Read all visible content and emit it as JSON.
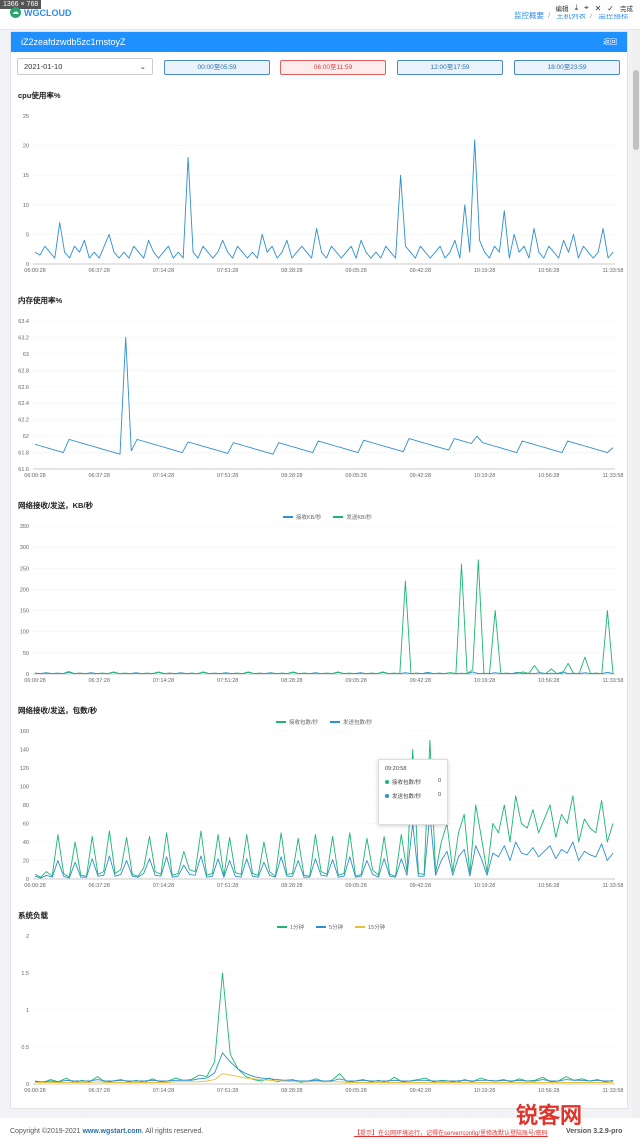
{
  "screen": {
    "size_tag": "1366 × 768"
  },
  "topbar": {
    "logo": "WGCLOUD",
    "breadcrumb": [
      "监控概要",
      "主机列表",
      "监控指标"
    ],
    "edit_tools": [
      "编辑",
      "完成"
    ]
  },
  "panel": {
    "title": "iZ2zeafdzwdb5zc1rnstoyZ",
    "back_label": "返回",
    "date_value": "2021-01-10",
    "time_ranges": [
      "00:00至05:59",
      "06:00至11:59",
      "12:00至17:59",
      "18:00至23:59"
    ],
    "active_range_index": 1
  },
  "colors": {
    "blue": "#2f8fd1",
    "green": "#1bb76e",
    "dark_green": "#1a9e6a",
    "yellow": "#e6c23a",
    "header": "#1e90ff"
  },
  "x_ticks": [
    "06:00:28",
    "06:37:28",
    "07:14:28",
    "07:51:28",
    "08:28:28",
    "09:05:28",
    "09:42:28",
    "10:19:28",
    "10:56:28",
    "11:33:58"
  ],
  "chart_data": [
    {
      "type": "line",
      "title": "cpu使用率%",
      "ylim": [
        0,
        25
      ],
      "yticks": [
        "0",
        "5",
        "10",
        "15",
        "20",
        "25"
      ],
      "series": [
        {
          "values": [
            2,
            1.5,
            3,
            2,
            1,
            7,
            2,
            1,
            3,
            2,
            4,
            1,
            2,
            1,
            3,
            5,
            2,
            1,
            2,
            1,
            3,
            2,
            1,
            4,
            2,
            1,
            2,
            3,
            1,
            2,
            1,
            18,
            2,
            1,
            3,
            2,
            1,
            2,
            4,
            2,
            1,
            3,
            2,
            1,
            2,
            1,
            5,
            2,
            3,
            1,
            2,
            4,
            1,
            2,
            3,
            2,
            1,
            6,
            2,
            1,
            3,
            2,
            1,
            2,
            3,
            1,
            4,
            2,
            1,
            2,
            1,
            3,
            2,
            1,
            15,
            3,
            2,
            1,
            3,
            2,
            1,
            2,
            3,
            1,
            2,
            4,
            1,
            10,
            2,
            21,
            4,
            2,
            1,
            3,
            2,
            9,
            1,
            5,
            2,
            3,
            1,
            6,
            2,
            1,
            3,
            2,
            1,
            4,
            2,
            5,
            1,
            3,
            2,
            1,
            2,
            6,
            1,
            2
          ]
        }
      ]
    },
    {
      "type": "line",
      "title": "内存使用率%",
      "ylim": [
        61.6,
        63.4
      ],
      "yticks": [
        "61.6",
        "61.8",
        "62",
        "62.2",
        "62.4",
        "62.6",
        "62.8",
        "63",
        "63.2",
        "63.4"
      ],
      "series": [
        {
          "values": [
            61.9,
            61.88,
            61.86,
            61.84,
            61.82,
            61.8,
            61.96,
            61.94,
            61.92,
            61.9,
            61.88,
            61.86,
            61.84,
            61.82,
            61.8,
            61.78,
            63.2,
            61.82,
            61.96,
            61.94,
            61.92,
            61.9,
            61.88,
            61.86,
            61.84,
            61.82,
            61.8,
            61.93,
            61.91,
            61.89,
            61.87,
            61.85,
            61.83,
            61.81,
            61.79,
            61.92,
            61.9,
            61.88,
            61.86,
            61.84,
            61.82,
            61.8,
            61.78,
            61.92,
            61.9,
            61.88,
            61.86,
            61.84,
            61.82,
            61.8,
            61.94,
            61.92,
            61.9,
            61.88,
            61.86,
            61.84,
            61.82,
            61.8,
            61.95,
            61.93,
            61.91,
            61.89,
            61.87,
            61.85,
            61.83,
            61.81,
            61.97,
            61.95,
            61.93,
            61.91,
            61.89,
            61.87,
            61.85,
            61.83,
            61.97,
            61.95,
            61.93,
            61.91,
            62,
            61.92,
            61.9,
            61.88,
            61.86,
            61.84,
            61.82,
            61.8,
            61.94,
            61.92,
            61.9,
            61.88,
            61.86,
            61.84,
            61.82,
            61.8,
            61.94,
            61.92,
            61.9,
            61.88,
            61.86,
            61.84,
            61.82,
            61.8,
            61.86
          ]
        }
      ]
    },
    {
      "type": "line",
      "title": "网络接收/发送，KB/秒",
      "ylim": [
        0,
        350
      ],
      "yticks": [
        "0",
        "50",
        "100",
        "150",
        "200",
        "250",
        "300",
        "350"
      ],
      "series": [
        {
          "name": "接收KB/秒",
          "values": [
            2,
            1,
            3,
            1,
            2,
            1,
            4,
            1,
            2,
            1,
            3,
            1,
            2,
            1,
            5,
            1,
            2,
            1,
            3,
            1,
            2,
            1,
            4,
            1,
            2,
            1,
            3,
            1,
            2,
            1,
            5,
            1,
            2,
            1,
            3,
            1,
            2,
            1,
            4,
            1,
            2,
            1,
            3,
            1,
            2,
            1,
            5,
            1,
            2,
            1,
            3,
            1,
            2,
            1,
            4,
            1,
            2,
            1,
            3,
            1,
            2,
            1,
            5,
            1,
            2,
            1,
            3,
            1,
            2,
            1,
            4,
            1,
            2,
            1,
            3,
            1,
            2,
            1,
            5,
            1,
            2,
            1,
            3,
            1,
            2,
            1,
            4,
            1,
            2,
            1,
            3,
            1,
            2,
            1,
            5,
            1,
            2,
            1,
            3,
            1,
            2,
            1,
            4,
            1
          ]
        },
        {
          "name": "发送KB/秒",
          "values": [
            2,
            1,
            2,
            1,
            2,
            1,
            6,
            1,
            2,
            1,
            2,
            1,
            2,
            1,
            4,
            1,
            2,
            1,
            2,
            1,
            2,
            1,
            5,
            1,
            2,
            1,
            2,
            1,
            2,
            1,
            4,
            1,
            2,
            1,
            2,
            1,
            2,
            1,
            5,
            1,
            2,
            1,
            2,
            1,
            2,
            1,
            4,
            1,
            2,
            1,
            2,
            1,
            2,
            1,
            5,
            1,
            2,
            1,
            2,
            1,
            2,
            1,
            4,
            1,
            2,
            1,
            220,
            1,
            2,
            1,
            2,
            1,
            2,
            1,
            3,
            1,
            260,
            1,
            10,
            270,
            1,
            2,
            150,
            1,
            2,
            1,
            2,
            5,
            1,
            20,
            2,
            1,
            12,
            1,
            2,
            25,
            1,
            2,
            40,
            1,
            2,
            1,
            150,
            1
          ]
        }
      ]
    },
    {
      "type": "line",
      "title": "网络接收/发送，包数/秒",
      "ylim": [
        0,
        160
      ],
      "yticks": [
        "0",
        "20",
        "40",
        "60",
        "80",
        "100",
        "120",
        "140",
        "160"
      ],
      "series": [
        {
          "name": "接收包数/秒",
          "values": [
            5,
            2,
            8,
            3,
            48,
            6,
            2,
            40,
            4,
            3,
            46,
            5,
            8,
            52,
            6,
            10,
            45,
            5,
            3,
            12,
            46,
            8,
            5,
            50,
            4,
            6,
            30,
            10,
            8,
            52,
            4,
            6,
            48,
            3,
            45,
            7,
            5,
            48,
            6,
            4,
            40,
            8,
            3,
            50,
            5,
            6,
            44,
            4,
            3,
            48,
            8,
            5,
            46,
            4,
            6,
            50,
            3,
            5,
            44,
            10,
            4,
            46,
            5,
            3,
            48,
            8,
            140,
            6,
            5,
            150,
            7,
            40,
            60,
            8,
            50,
            70,
            6,
            80,
            45,
            7,
            60,
            50,
            80,
            40,
            90,
            60,
            55,
            75,
            50,
            65,
            80,
            45,
            70,
            60,
            90,
            40,
            65,
            55,
            50,
            85,
            40,
            60
          ]
        },
        {
          "name": "发送包数/秒",
          "values": [
            3,
            1,
            4,
            2,
            20,
            3,
            1,
            18,
            2,
            2,
            22,
            3,
            4,
            25,
            3,
            5,
            20,
            3,
            2,
            6,
            22,
            4,
            3,
            24,
            2,
            3,
            15,
            5,
            4,
            25,
            2,
            3,
            22,
            2,
            20,
            3,
            2,
            22,
            3,
            2,
            18,
            4,
            2,
            24,
            3,
            3,
            20,
            2,
            2,
            22,
            4,
            3,
            21,
            2,
            3,
            24,
            2,
            3,
            20,
            5,
            2,
            22,
            3,
            2,
            22,
            4,
            60,
            3,
            3,
            70,
            4,
            20,
            30,
            4,
            24,
            32,
            3,
            36,
            22,
            4,
            28,
            24,
            36,
            20,
            40,
            28,
            26,
            34,
            24,
            30,
            36,
            22,
            32,
            28,
            40,
            20,
            30,
            26,
            24,
            38,
            20,
            28
          ]
        }
      ]
    },
    {
      "type": "line",
      "title": "系统负载",
      "ylim": [
        0,
        2
      ],
      "yticks": [
        "0",
        "0.5",
        "1",
        "1.5",
        "2"
      ],
      "series": [
        {
          "name": "1分钟",
          "values": [
            0.04,
            0.02,
            0.06,
            0.03,
            0.08,
            0.02,
            0.05,
            0.03,
            0.1,
            0.02,
            0.04,
            0.06,
            0.03,
            0.05,
            0.02,
            0.07,
            0.03,
            0.04,
            0.08,
            0.05,
            0.06,
            0.12,
            0.1,
            0.3,
            1.5,
            0.4,
            0.2,
            0.1,
            0.06,
            0.04,
            0.08,
            0.03,
            0.05,
            0.06,
            0.02,
            0.04,
            0.07,
            0.03,
            0.05,
            0.14,
            0.02,
            0.04,
            0.06,
            0.03,
            0.05,
            0.02,
            0.09,
            0.03,
            0.04,
            0.06,
            0.08,
            0.03,
            0.05,
            0.04,
            0.02,
            0.06,
            0.03,
            0.08,
            0.05,
            0.04,
            0.06,
            0.03,
            0.07,
            0.04,
            0.05,
            0.09,
            0.03,
            0.04,
            0.1,
            0.05,
            0.07,
            0.04,
            0.06,
            0.03,
            0.05
          ]
        },
        {
          "name": "5分钟",
          "values": [
            0.03,
            0.03,
            0.04,
            0.03,
            0.05,
            0.04,
            0.04,
            0.04,
            0.06,
            0.04,
            0.04,
            0.05,
            0.04,
            0.04,
            0.04,
            0.05,
            0.04,
            0.04,
            0.05,
            0.05,
            0.05,
            0.07,
            0.08,
            0.15,
            0.42,
            0.3,
            0.2,
            0.14,
            0.1,
            0.08,
            0.07,
            0.06,
            0.05,
            0.05,
            0.04,
            0.04,
            0.05,
            0.04,
            0.04,
            0.07,
            0.04,
            0.04,
            0.05,
            0.04,
            0.04,
            0.04,
            0.05,
            0.04,
            0.04,
            0.05,
            0.05,
            0.04,
            0.04,
            0.04,
            0.04,
            0.05,
            0.04,
            0.05,
            0.05,
            0.04,
            0.05,
            0.04,
            0.05,
            0.04,
            0.04,
            0.06,
            0.04,
            0.04,
            0.06,
            0.05,
            0.05,
            0.04,
            0.05,
            0.04,
            0.04
          ]
        },
        {
          "name": "15分钟",
          "values": [
            0.02,
            0.02,
            0.02,
            0.02,
            0.02,
            0.02,
            0.02,
            0.02,
            0.03,
            0.02,
            0.02,
            0.02,
            0.02,
            0.02,
            0.02,
            0.02,
            0.02,
            0.02,
            0.03,
            0.03,
            0.03,
            0.03,
            0.04,
            0.06,
            0.14,
            0.12,
            0.1,
            0.08,
            0.07,
            0.06,
            0.05,
            0.04,
            0.04,
            0.03,
            0.03,
            0.03,
            0.03,
            0.03,
            0.03,
            0.03,
            0.02,
            0.02,
            0.02,
            0.02,
            0.02,
            0.02,
            0.02,
            0.02,
            0.02,
            0.02,
            0.02,
            0.02,
            0.02,
            0.02,
            0.02,
            0.02,
            0.02,
            0.02,
            0.02,
            0.02,
            0.02,
            0.02,
            0.02,
            0.02,
            0.02,
            0.02,
            0.02,
            0.02,
            0.02,
            0.02,
            0.02,
            0.02,
            0.02,
            0.02,
            0.02
          ]
        }
      ]
    }
  ],
  "tooltip": {
    "time": "09:20:58",
    "rows": [
      {
        "label": "接收包数/秒",
        "value": "0"
      },
      {
        "label": "发送包数/秒",
        "value": "0"
      }
    ]
  },
  "footer": {
    "copyright": "Copyright ©2019-2021 ",
    "site": "www.wgstart.com",
    "rights": ". All rights reserved.",
    "hint": "【提示】在公网环境运行，记得在server/config/里修改默认登陆账号/密码",
    "version": "Version 3.2.9-pro"
  },
  "watermark": "锐客网"
}
